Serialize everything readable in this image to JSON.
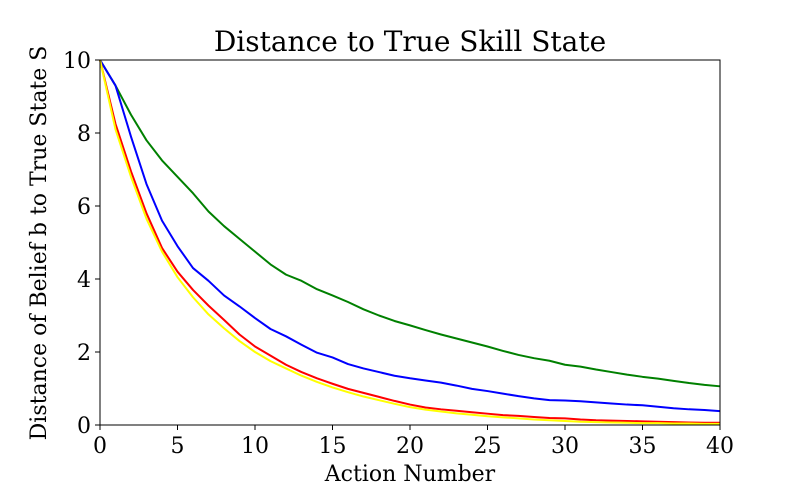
{
  "chart_data": {
    "type": "line",
    "title": "Distance to True Skill State",
    "xlabel": "Action Number",
    "ylabel": "Distance of Belief b to True State S",
    "xlim": [
      0,
      40
    ],
    "ylim": [
      0,
      10
    ],
    "xticks": [
      0,
      5,
      10,
      15,
      20,
      25,
      30,
      35,
      40
    ],
    "yticks": [
      0,
      2,
      4,
      6,
      8,
      10
    ],
    "grid": false,
    "legend": "none",
    "x": [
      0,
      1,
      2,
      3,
      4,
      5,
      6,
      7,
      8,
      9,
      10,
      11,
      12,
      13,
      14,
      15,
      16,
      17,
      18,
      19,
      20,
      21,
      22,
      23,
      24,
      25,
      26,
      27,
      28,
      29,
      30,
      31,
      32,
      33,
      34,
      35,
      36,
      37,
      38,
      39,
      40
    ],
    "series": [
      {
        "color": "#008000",
        "values": [
          10.0,
          9.3,
          8.5,
          7.8,
          7.25,
          6.8,
          6.35,
          5.85,
          5.45,
          5.1,
          4.75,
          4.4,
          4.12,
          3.95,
          3.72,
          3.55,
          3.37,
          3.17,
          3.0,
          2.85,
          2.73,
          2.6,
          2.48,
          2.37,
          2.26,
          2.15,
          2.03,
          1.92,
          1.83,
          1.76,
          1.65,
          1.6,
          1.52,
          1.45,
          1.38,
          1.32,
          1.27,
          1.21,
          1.15,
          1.1,
          1.06
        ]
      },
      {
        "color": "#0000ff",
        "values": [
          10.0,
          9.3,
          7.9,
          6.6,
          5.6,
          4.9,
          4.3,
          3.95,
          3.55,
          3.25,
          2.93,
          2.63,
          2.43,
          2.2,
          1.98,
          1.85,
          1.67,
          1.55,
          1.45,
          1.35,
          1.28,
          1.22,
          1.16,
          1.08,
          0.99,
          0.93,
          0.86,
          0.79,
          0.73,
          0.68,
          0.67,
          0.65,
          0.62,
          0.59,
          0.56,
          0.54,
          0.5,
          0.46,
          0.43,
          0.41,
          0.38
        ]
      },
      {
        "color": "#ff0000",
        "values": [
          10.0,
          8.25,
          6.95,
          5.8,
          4.85,
          4.2,
          3.7,
          3.27,
          2.88,
          2.48,
          2.15,
          1.9,
          1.65,
          1.45,
          1.28,
          1.13,
          0.99,
          0.88,
          0.77,
          0.66,
          0.56,
          0.48,
          0.43,
          0.39,
          0.35,
          0.31,
          0.27,
          0.25,
          0.22,
          0.19,
          0.18,
          0.15,
          0.13,
          0.12,
          0.11,
          0.1,
          0.09,
          0.08,
          0.07,
          0.06,
          0.06
        ]
      },
      {
        "color": "#ffff00",
        "values": [
          10.0,
          8.1,
          6.8,
          5.65,
          4.75,
          4.05,
          3.5,
          3.03,
          2.65,
          2.3,
          2.0,
          1.75,
          1.55,
          1.35,
          1.18,
          1.03,
          0.9,
          0.78,
          0.68,
          0.58,
          0.49,
          0.42,
          0.37,
          0.32,
          0.28,
          0.24,
          0.21,
          0.18,
          0.15,
          0.13,
          0.11,
          0.09,
          0.08,
          0.07,
          0.06,
          0.05,
          0.05,
          0.04,
          0.04,
          0.03,
          0.03
        ]
      }
    ]
  }
}
